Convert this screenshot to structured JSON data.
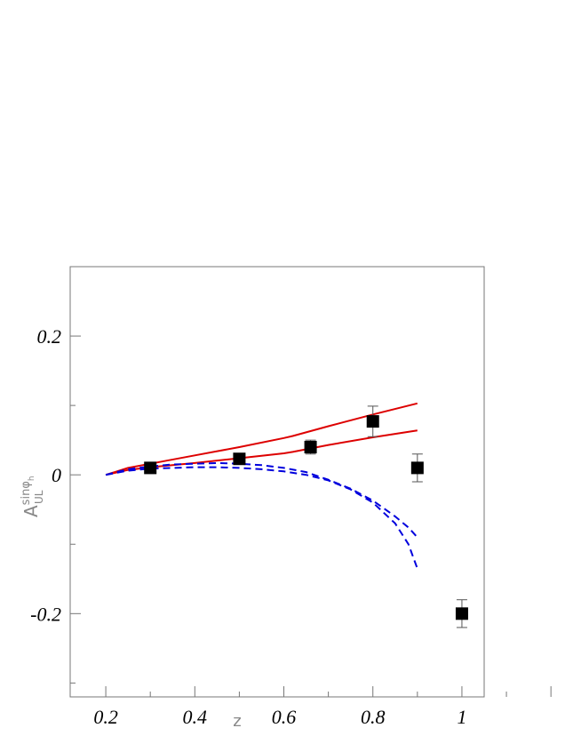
{
  "chart_data": {
    "type": "scatter",
    "title": "",
    "xlabel": "z",
    "ylabel_main": "A",
    "ylabel_sup": "sinφ",
    "ylabel_sup_sub": "h",
    "ylabel_sub": "UL",
    "xlim": [
      0.12,
      1.05
    ],
    "ylim": [
      -0.32,
      0.3
    ],
    "x_ticks": [
      0.2,
      0.4,
      0.6,
      0.8,
      1
    ],
    "x_tick_labels": [
      "0.2",
      "0.4",
      "0.6",
      "0.8",
      "1"
    ],
    "y_ticks": [
      -0.2,
      0,
      0.2
    ],
    "y_tick_labels": [
      "-0.2",
      "0",
      "0.2"
    ],
    "grid": false,
    "series": [
      {
        "kind": "points",
        "color": "#000000",
        "x": [
          0.3,
          0.5,
          0.66,
          0.8,
          0.9,
          1.0
        ],
        "y": [
          0.01,
          0.023,
          0.04,
          0.077,
          0.01,
          -0.2
        ],
        "err": [
          0.008,
          0.008,
          0.01,
          0.022,
          0.02,
          0.02
        ]
      },
      {
        "kind": "line",
        "style": "solid",
        "color": "#dd0000",
        "x": [
          0.2,
          0.25,
          0.3,
          0.4,
          0.5,
          0.6,
          0.62,
          0.7,
          0.8,
          0.9
        ],
        "y": [
          0.0,
          0.01,
          0.016,
          0.028,
          0.04,
          0.053,
          0.056,
          0.07,
          0.087,
          0.103
        ]
      },
      {
        "kind": "line",
        "style": "solid",
        "color": "#dd0000",
        "x": [
          0.2,
          0.25,
          0.3,
          0.4,
          0.5,
          0.6,
          0.62,
          0.7,
          0.8,
          0.9
        ],
        "y": [
          0.0,
          0.007,
          0.011,
          0.017,
          0.024,
          0.031,
          0.033,
          0.043,
          0.054,
          0.064
        ]
      },
      {
        "kind": "line",
        "style": "dashed",
        "color": "#0000dd",
        "x": [
          0.2,
          0.25,
          0.3,
          0.35,
          0.4,
          0.45,
          0.5,
          0.55,
          0.6,
          0.65,
          0.7,
          0.75,
          0.8,
          0.85,
          0.88,
          0.9
        ],
        "y": [
          0.0,
          0.008,
          0.012,
          0.015,
          0.016,
          0.017,
          0.016,
          0.014,
          0.01,
          0.004,
          -0.007,
          -0.02,
          -0.037,
          -0.06,
          -0.076,
          -0.09
        ]
      },
      {
        "kind": "line",
        "style": "dashed",
        "color": "#0000dd",
        "x": [
          0.2,
          0.25,
          0.3,
          0.35,
          0.4,
          0.45,
          0.5,
          0.55,
          0.6,
          0.65,
          0.7,
          0.75,
          0.8,
          0.85,
          0.88,
          0.9
        ],
        "y": [
          0.0,
          0.006,
          0.009,
          0.01,
          0.011,
          0.011,
          0.01,
          0.008,
          0.005,
          0.0,
          -0.008,
          -0.021,
          -0.04,
          -0.07,
          -0.1,
          -0.135
        ]
      }
    ]
  }
}
